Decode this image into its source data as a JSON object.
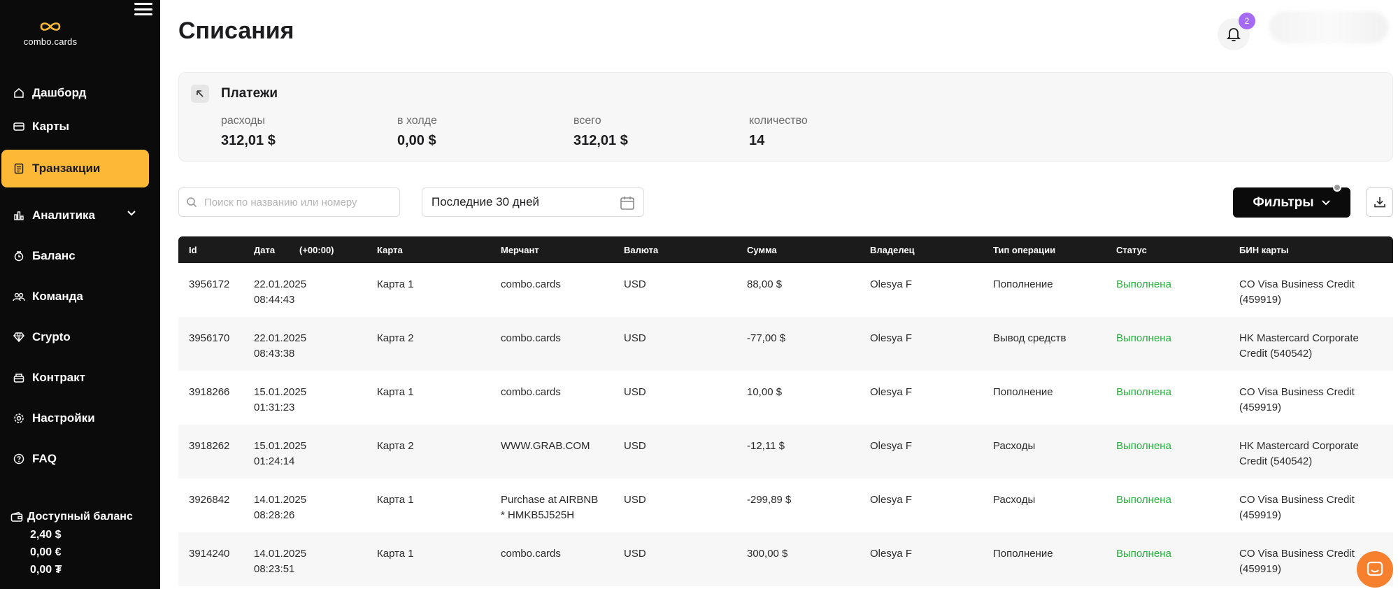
{
  "brand": {
    "name": "combo.cards"
  },
  "sidebar": {
    "items": [
      {
        "label": "Дашборд",
        "icon": "home-icon"
      },
      {
        "label": "Карты",
        "icon": "card-icon"
      },
      {
        "label": "Транзакции",
        "icon": "receipt-icon",
        "active": true
      },
      {
        "label": "Аналитика",
        "icon": "chart-icon",
        "expandable": true
      },
      {
        "label": "Баланс",
        "icon": "wallet-icon"
      },
      {
        "label": "Команда",
        "icon": "team-icon"
      },
      {
        "label": "Crypto",
        "icon": "diamond-icon"
      },
      {
        "label": "Контракт",
        "icon": "contract-icon"
      },
      {
        "label": "Настройки",
        "icon": "gear-icon"
      },
      {
        "label": "FAQ",
        "icon": "question-icon"
      }
    ],
    "balance": {
      "title": "Доступный баланс",
      "values": [
        "2,40 $",
        "0,00 €",
        "0,00 ₮"
      ]
    }
  },
  "header": {
    "title": "Списания",
    "notifications_count": "2"
  },
  "payments": {
    "title": "Платежи",
    "stats": [
      {
        "label": "расходы",
        "value": "312,01 $"
      },
      {
        "label": "в холде",
        "value": "0,00 $"
      },
      {
        "label": "всего",
        "value": "312,01 $"
      },
      {
        "label": "количество",
        "value": "14"
      }
    ]
  },
  "toolbar": {
    "search_placeholder": "Поиск по названию или номеру",
    "date_range": "Последние 30 дней",
    "filters_label": "Фильтры"
  },
  "table": {
    "columns": [
      "Id",
      "Дата",
      "(+00:00)",
      "Карта",
      "Мерчант",
      "Валюта",
      "Сумма",
      "Владелец",
      "Тип операции",
      "Статус",
      "БИН карты"
    ],
    "rows": [
      {
        "id": "3956172",
        "date": "22.01.2025",
        "time": "08:44:43",
        "card": "Карта 1",
        "merchant1": "combo.cards",
        "merchant2": "",
        "currency": "USD",
        "amount": "88,00 $",
        "owner": "Olesya F",
        "type": "Пополнение",
        "status": "Выполнена",
        "bin1": "CO Visa Business Credit",
        "bin2": "(459919)"
      },
      {
        "id": "3956170",
        "date": "22.01.2025",
        "time": "08:43:38",
        "card": "Карта 2",
        "merchant1": "combo.cards",
        "merchant2": "",
        "currency": "USD",
        "amount": "-77,00 $",
        "owner": "Olesya F",
        "type": "Вывод средств",
        "status": "Выполнена",
        "bin1": "HK Mastercard Corporate",
        "bin2": "Credit (540542)"
      },
      {
        "id": "3918266",
        "date": "15.01.2025",
        "time": "01:31:23",
        "card": "Карта 1",
        "merchant1": "combo.cards",
        "merchant2": "",
        "currency": "USD",
        "amount": "10,00 $",
        "owner": "Olesya F",
        "type": "Пополнение",
        "status": "Выполнена",
        "bin1": "CO Visa Business Credit",
        "bin2": "(459919)"
      },
      {
        "id": "3918262",
        "date": "15.01.2025",
        "time": "01:24:14",
        "card": "Карта 2",
        "merchant1": "WWW.GRAB.COM",
        "merchant2": "",
        "currency": "USD",
        "amount": "-12,11 $",
        "owner": "Olesya F",
        "type": "Расходы",
        "status": "Выполнена",
        "bin1": "HK Mastercard Corporate",
        "bin2": "Credit (540542)"
      },
      {
        "id": "3926842",
        "date": "14.01.2025",
        "time": "08:28:26",
        "card": "Карта 1",
        "merchant1": "Purchase at AIRBNB",
        "merchant2": "* HMKB5J525H",
        "currency": "USD",
        "amount": "-299,89 $",
        "owner": "Olesya F",
        "type": "Расходы",
        "status": "Выполнена",
        "bin1": "CO Visa Business Credit",
        "bin2": "(459919)"
      },
      {
        "id": "3914240",
        "date": "14.01.2025",
        "time": "08:23:51",
        "card": "Карта 1",
        "merchant1": "combo.cards",
        "merchant2": "",
        "currency": "USD",
        "amount": "300,00 $",
        "owner": "Olesya F",
        "type": "Пополнение",
        "status": "Выполнена",
        "bin1": "CO Visa Business Credit",
        "bin2": "(459919)"
      }
    ]
  },
  "colors": {
    "accent": "#fdb935",
    "sidebar_bg": "#0b0b0b",
    "status_success": "#22b33a",
    "badge": "#a66bf5",
    "chat": "#f7802e"
  }
}
